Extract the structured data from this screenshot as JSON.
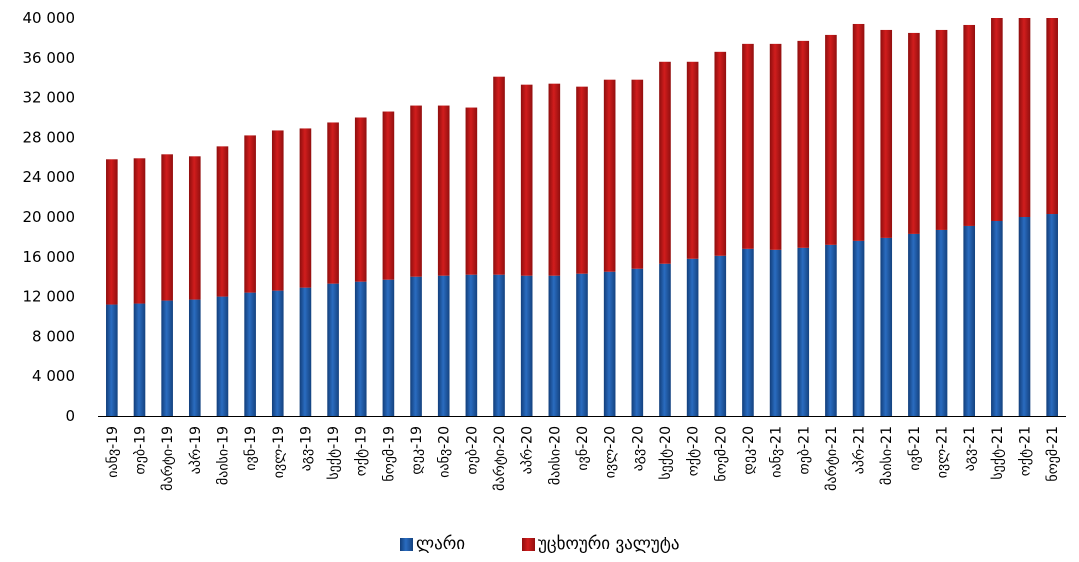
{
  "chart_data": {
    "type": "bar",
    "stacked": true,
    "categories": [
      "იანვ-19",
      "თებ-19",
      "მარტი-19",
      "აპრ-19",
      "მაისი-19",
      "ივნ-19",
      "ივლ-19",
      "აგვ-19",
      "სექტ-19",
      "ოქტ-19",
      "ნოემ-19",
      "დეკ-19",
      "იანვ-20",
      "თებ-20",
      "მარტი-20",
      "აპრ-20",
      "მაისი-20",
      "ივნ-20",
      "ივლ-20",
      "აგვ-20",
      "სექტ-20",
      "ოქტ-20",
      "ნოემ-20",
      "დეკ-20",
      "იანვ-21",
      "თებ-21",
      "მარტი-21",
      "აპრ-21",
      "მაისი-21",
      "ივნ-21",
      "ივლ-21",
      "აგვ-21",
      "სექტ-21",
      "ოქტ-21",
      "ნოემ-21"
    ],
    "series": [
      {
        "name": "ლარი",
        "color": "#1F5CAA",
        "values": [
          11200,
          11300,
          11600,
          11700,
          12000,
          12400,
          12600,
          12900,
          13300,
          13500,
          13700,
          14000,
          14100,
          14200,
          14200,
          14100,
          14100,
          14300,
          14500,
          14800,
          15300,
          15800,
          16100,
          16800,
          16700,
          16900,
          17200,
          17600,
          17900,
          18300,
          18700,
          19100,
          19600,
          20000,
          20300
        ]
      },
      {
        "name": "უცხოური ვალუტა",
        "color": "#C01717",
        "values": [
          14600,
          14600,
          14700,
          14400,
          15100,
          15800,
          16100,
          16000,
          16200,
          16500,
          16900,
          17200,
          17100,
          16800,
          19900,
          19200,
          19300,
          18800,
          19300,
          19000,
          20300,
          19800,
          20500,
          20600,
          20700,
          20800,
          21100,
          21800,
          20900,
          20200,
          20100,
          20200,
          20700,
          20900,
          19900
        ]
      }
    ],
    "ylim": [
      0,
      40000
    ],
    "yticks": [
      0,
      4000,
      8000,
      12000,
      16000,
      20000,
      24000,
      28000,
      32000,
      36000,
      40000
    ],
    "ytick_labels": [
      "0",
      "4 000",
      "8 000",
      "12 000",
      "16 000",
      "20 000",
      "24 000",
      "28 000",
      "32 000",
      "36 000",
      "40 000"
    ],
    "grid": false,
    "legend_position": "bottom-center"
  }
}
